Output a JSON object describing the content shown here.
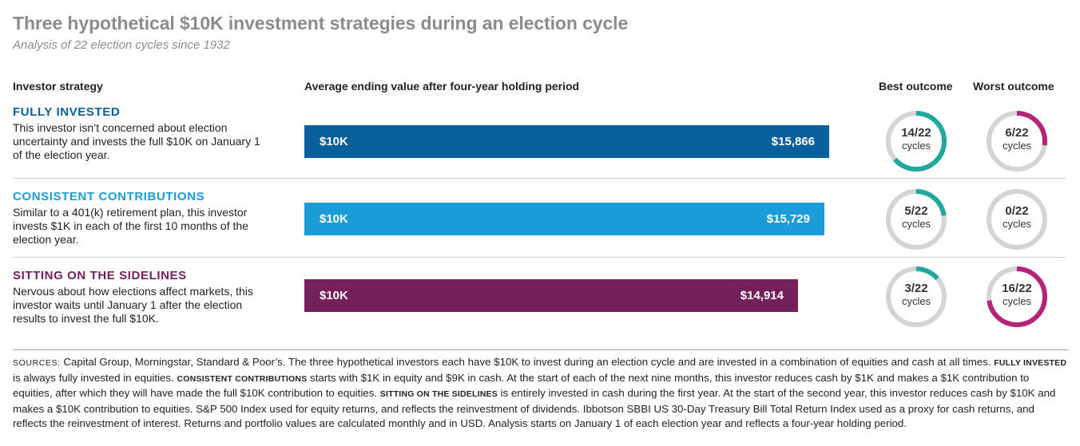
{
  "title": "Three hypothetical $10K investment strategies during an election cycle",
  "subtitle": "Analysis of 22 election cycles since 1932",
  "headers": {
    "strategy": "Investor strategy",
    "average": "Average ending value after four-year holding period",
    "best": "Best outcome",
    "worst": "Worst outcome"
  },
  "colors": {
    "fully_invested": "#07609b",
    "consistent": "#1b9cd8",
    "sidelines": "#74205a",
    "best_ring": "#1fa89c",
    "worst_ring": "#b8237a",
    "ring_track": "#d4d4d2"
  },
  "rows": [
    {
      "name": "FULLY INVESTED",
      "description": "This investor isn’t concerned about election uncertainty and invests the full $10K on January 1 of the election year.",
      "start_label": "$10K",
      "end_label": "$15,866",
      "best": {
        "label": "14/22",
        "cycles": "cycles",
        "count": 14,
        "total": 22
      },
      "worst": {
        "label": "6/22",
        "cycles": "cycles",
        "count": 6,
        "total": 22
      }
    },
    {
      "name": "CONSISTENT CONTRIBUTIONS",
      "description": "Similar to a 401(k) retirement plan, this investor invests $1K in each of the first 10 months of the election year.",
      "start_label": "$10K",
      "end_label": "$15,729",
      "best": {
        "label": "5/22",
        "cycles": "cycles",
        "count": 5,
        "total": 22
      },
      "worst": {
        "label": "0/22",
        "cycles": "cycles",
        "count": 0,
        "total": 22
      }
    },
    {
      "name": "SITTING ON THE SIDELINES",
      "description": "Nervous about how elections affect markets, this investor waits until January 1 after the election results to invest the full $10K.",
      "start_label": "$10K",
      "end_label": "$14,914",
      "best": {
        "label": "3/22",
        "cycles": "cycles",
        "count": 3,
        "total": 22
      },
      "worst": {
        "label": "16/22",
        "cycles": "cycles",
        "count": 16,
        "total": 22
      }
    }
  ],
  "chart_data": {
    "type": "bar",
    "orientation": "horizontal",
    "categories": [
      "FULLY INVESTED",
      "CONSISTENT CONTRIBUTIONS",
      "SITTING ON THE SIDELINES"
    ],
    "values": [
      15866,
      15729,
      14914
    ],
    "start_value": 10000,
    "title": "Three hypothetical $10K investment strategies during an election cycle",
    "subtitle": "Analysis of 22 election cycles since 1932",
    "value_label": "Average ending value after four-year holding period",
    "best_outcome": [
      14,
      5,
      3
    ],
    "worst_outcome": [
      6,
      0,
      16
    ],
    "total_cycles": 22
  },
  "footnote": {
    "sources_label": "SOURCES:",
    "p1": " Capital Group, Morningstar, Standard & Poor’s. The three hypothetical investors each have $10K to invest during an election cycle and are invested in a combination of equities and cash at all times. ",
    "fi_label": "FULLY INVESTED",
    "p2": " is always fully invested in equities. ",
    "cc_label": "CONSISTENT CONTRIBUTIONS",
    "p3": " starts with $1K in equity and $9K in cash. At the start of each of the next nine months, this investor reduces cash by $1K and makes a $1K contribution to equities, after which they will have made the full $10K contribution to equities. ",
    "ss_label": "SITTING ON THE SIDELINES",
    "p4": " is entirely invested in cash during the first year. At the start of the second year, this investor reduces cash by $10K and makes a $10K contribution to equities. S&P 500 Index used for equity returns, and reflects the reinvestment of dividends. Ibbotson SBBI US 30-Day Treasury Bill Total Return Index used as a proxy for cash returns, and reflects the reinvestment of interest. Returns and portfolio values are calculated monthly and in USD. Analysis starts on January 1 of each election year and reflects a four-year holding period."
  }
}
